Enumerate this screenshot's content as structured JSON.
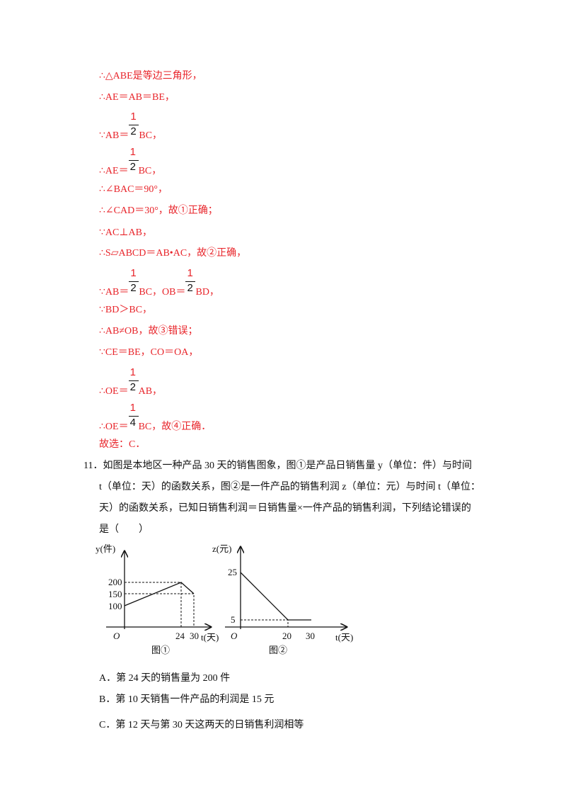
{
  "solution": {
    "lines": [
      [
        "∴△ABE是等边三角形，"
      ],
      [
        "∴AE＝AB＝BE，"
      ],
      [
        "∵AB＝",
        {
          "num": "1",
          "den": "2"
        },
        "BC，"
      ],
      [
        "∴AE＝",
        {
          "num": "1",
          "den": "2"
        },
        "BC，"
      ],
      [
        "∴∠BAC＝90°，"
      ],
      [
        "∴∠CAD＝30°，故①正确；"
      ],
      [
        "∵AC⊥AB，"
      ],
      [
        "∴S▱ABCD＝AB•AC，故②正确，"
      ],
      [
        "∵AB＝",
        {
          "num": "1",
          "den": "2"
        },
        "BC，OB＝",
        {
          "num": "1",
          "den": "2"
        },
        "BD，"
      ],
      [
        "∵BD＞BC，"
      ],
      [
        "∴AB≠OB，故③错误；"
      ],
      [
        "∵CE＝BE，CO＝OA，"
      ],
      [
        "∴OE＝",
        {
          "num": "1",
          "den": "2"
        },
        "AB，"
      ],
      [
        "∴OE＝",
        {
          "num": "1",
          "den": "4"
        },
        "BC，故④正确．"
      ],
      [
        "故选：C．"
      ]
    ]
  },
  "question": {
    "lines": [
      "11．如图是本地区一种产品 30 天的销售图象，图①是产品日销售量 y（单位：件）与时间",
      "t（单位：天）的函数关系，图②是一件产品的销售利润 z（单位：元）与时间 t（单位：",
      "天）的函数关系，已知日销售利润＝日销售量×一件产品的销售利润，下列结论错误的",
      "是（　　）"
    ]
  },
  "figures": [
    {
      "y_label": "y(件)",
      "x_label": "t(天)",
      "origin": "O",
      "y_ticks": [
        "200",
        "150",
        "100"
      ],
      "x_ticks": [
        "24",
        "30"
      ],
      "caption": "图①"
    },
    {
      "y_label": "z(元)",
      "x_label": "t(天)",
      "origin": "O",
      "y_ticks": [
        "25",
        "5"
      ],
      "x_ticks": [
        "20",
        "30"
      ],
      "caption": "图②"
    }
  ],
  "options": [
    "A．第 24 天的销售量为 200 件",
    "B．第 10 天销售一件产品的利润是 15 元",
    "C．第 12 天与第 30 天这两天的日销售利润相等"
  ]
}
